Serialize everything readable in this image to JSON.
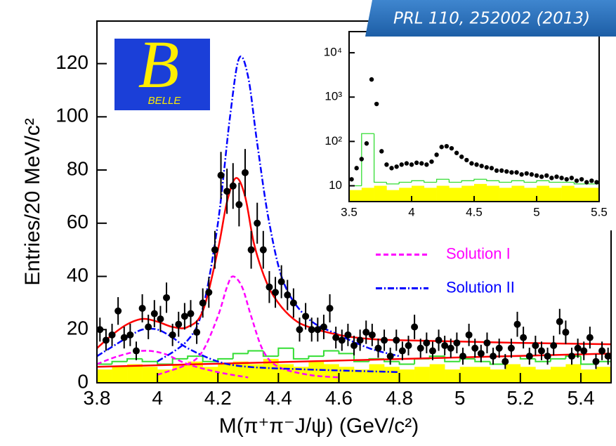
{
  "citation": "PRL 110, 252002 (2013)",
  "logo": {
    "mark": "B",
    "text": "BELLE"
  },
  "chart_data": [
    {
      "type": "histogram-fit",
      "x_label": "M(π⁺π⁻J/ψ) (GeV/c²)",
      "y_label": "Entries/20 MeV/c²",
      "xlim": [
        3.8,
        5.5
      ],
      "ylim": [
        0,
        136
      ],
      "xticks": [
        3.8,
        4,
        4.2,
        4.4,
        4.6,
        4.8,
        5,
        5.2,
        5.4
      ],
      "yticks": [
        0,
        20,
        40,
        60,
        80,
        100,
        120
      ],
      "legend": "center right",
      "histograms": [
        {
          "color": "#ffff00",
          "fill": true,
          "bins": [
            3.8,
            3.85,
            3.9,
            3.95,
            4.0,
            4.05,
            4.1,
            4.15,
            4.2,
            4.25,
            4.3,
            4.35,
            4.4,
            4.45,
            4.5,
            4.55,
            4.6,
            4.65,
            4.7,
            4.75,
            4.8,
            4.85,
            4.9,
            4.95,
            5.0,
            5.05,
            5.1,
            5.15,
            5.2,
            5.25,
            5.3,
            5.35,
            5.4,
            5.45,
            5.5
          ],
          "values": [
            5,
            6,
            7,
            6,
            5,
            7,
            8,
            6,
            7,
            8,
            7,
            9,
            7,
            6,
            8,
            7,
            6,
            5,
            7,
            6,
            5,
            6,
            7,
            5,
            6,
            6,
            5,
            7,
            6,
            5,
            6,
            7,
            5,
            6
          ]
        },
        {
          "color": "#33dd33",
          "fill": false,
          "bins": [
            3.8,
            3.85,
            3.9,
            3.95,
            4.0,
            4.05,
            4.1,
            4.15,
            4.2,
            4.25,
            4.3,
            4.35,
            4.4,
            4.45,
            4.5,
            4.55,
            4.6,
            4.65,
            4.7,
            4.75,
            4.8,
            4.85,
            4.9,
            4.95,
            5.0,
            5.05,
            5.1,
            5.15,
            5.2,
            5.25,
            5.3,
            5.35,
            5.4,
            5.45,
            5.5
          ],
          "values": [
            7,
            8,
            9,
            8,
            7,
            9,
            10,
            8,
            9,
            11,
            12,
            10,
            13,
            9,
            10,
            12,
            11,
            8,
            9,
            8,
            7,
            9,
            10,
            8,
            9,
            8,
            7,
            10,
            9,
            8,
            9,
            10,
            7,
            8
          ]
        }
      ],
      "curves": [
        {
          "color": "#ff0000",
          "dash": "solid",
          "x": [
            3.8,
            5.5
          ],
          "values": [
            6,
            11
          ]
        },
        {
          "color": "#ff00ff",
          "dash": "dashed",
          "x": [
            3.8,
            3.87,
            3.95,
            4.02,
            4.1,
            4.2,
            4.3
          ],
          "values": [
            7,
            10,
            12,
            11,
            7,
            4,
            2
          ]
        },
        {
          "name": "Solution I",
          "color": "#ff00ff",
          "dash": "dashed",
          "x": [
            4.0,
            4.1,
            4.15,
            4.2,
            4.23,
            4.25,
            4.28,
            4.31,
            4.35,
            4.4,
            4.5,
            4.6
          ],
          "values": [
            3,
            7,
            12,
            25,
            36,
            40,
            36,
            25,
            12,
            6,
            3,
            2
          ]
        },
        {
          "color": "#0000ff",
          "dash": "dashdot",
          "x": [
            3.8,
            3.9,
            3.95,
            4.0,
            4.05,
            4.1,
            4.2,
            4.3,
            4.5,
            4.8
          ],
          "values": [
            10,
            17,
            20,
            20,
            17,
            13,
            8,
            6,
            5,
            4
          ]
        },
        {
          "name": "Solution II",
          "color": "#0000ff",
          "dash": "dashdot",
          "x": [
            4.0,
            4.1,
            4.15,
            4.2,
            4.24,
            4.27,
            4.3,
            4.33,
            4.37,
            4.42,
            4.5,
            4.6,
            4.7,
            4.8
          ],
          "values": [
            8,
            16,
            28,
            60,
            100,
            122,
            115,
            90,
            60,
            37,
            24,
            18,
            13,
            10
          ]
        },
        {
          "color": "#ff0000",
          "dash": "solid",
          "x": [
            3.8,
            3.85,
            3.9,
            3.95,
            4.0,
            4.05,
            4.1,
            4.15,
            4.2,
            4.23,
            4.26,
            4.29,
            4.32,
            4.36,
            4.4,
            4.45,
            4.5,
            4.6,
            4.7,
            4.8,
            5.0,
            5.2,
            5.5
          ],
          "values": [
            13,
            18,
            22,
            24,
            23,
            21,
            21,
            27,
            50,
            68,
            77,
            70,
            52,
            38,
            30,
            24,
            21,
            18,
            16.5,
            16,
            15.5,
            15,
            14.5
          ]
        }
      ],
      "points": {
        "color": "#000000",
        "x": [
          3.81,
          3.83,
          3.85,
          3.87,
          3.89,
          3.91,
          3.93,
          3.95,
          3.97,
          3.99,
          4.01,
          4.03,
          4.05,
          4.07,
          4.09,
          4.11,
          4.13,
          4.15,
          4.17,
          4.19,
          4.21,
          4.23,
          4.25,
          4.27,
          4.29,
          4.31,
          4.33,
          4.35,
          4.37,
          4.39,
          4.41,
          4.43,
          4.45,
          4.47,
          4.49,
          4.51,
          4.53,
          4.55,
          4.57,
          4.59,
          4.61,
          4.63,
          4.65,
          4.67,
          4.69,
          4.71,
          4.73,
          4.75,
          4.77,
          4.79,
          4.81,
          4.83,
          4.85,
          4.87,
          4.89,
          4.91,
          4.93,
          4.95,
          4.97,
          4.99,
          5.01,
          5.03,
          5.05,
          5.07,
          5.09,
          5.11,
          5.13,
          5.15,
          5.17,
          5.19,
          5.21,
          5.23,
          5.25,
          5.27,
          5.29,
          5.31,
          5.33,
          5.35,
          5.37,
          5.39,
          5.41,
          5.43,
          5.45,
          5.47,
          5.49
        ],
        "values": [
          20,
          16,
          18,
          27,
          17,
          18,
          12,
          28,
          21,
          26,
          24,
          32,
          18,
          22,
          25,
          26,
          19,
          30,
          34,
          50,
          78,
          72,
          74,
          67,
          79,
          50,
          60,
          50,
          36,
          34,
          38,
          33,
          30,
          20,
          25,
          20,
          20,
          21,
          28,
          17,
          16,
          18,
          14,
          16,
          19,
          18,
          13,
          16,
          10,
          16,
          12,
          14,
          21,
          13,
          15,
          12,
          16,
          14,
          13,
          15,
          10,
          18,
          13,
          11,
          15,
          10,
          13,
          8,
          13,
          22,
          17,
          10,
          14,
          12,
          10,
          14,
          23,
          19,
          10,
          13,
          12,
          17,
          8,
          12,
          10
        ],
        "errors": [
          4.5,
          4,
          4.2,
          5.2,
          4.1,
          4.2,
          3.5,
          5.3,
          4.6,
          5.1,
          4.9,
          5.7,
          4.2,
          4.7,
          5,
          5.1,
          4.4,
          5.5,
          5.8,
          7.1,
          8.8,
          8.5,
          8.6,
          8.2,
          8.9,
          7.1,
          7.7,
          7.1,
          6,
          5.8,
          6.2,
          5.7,
          5.5,
          4.5,
          5,
          4.5,
          4.5,
          4.6,
          5.3,
          4.1,
          4,
          4.2,
          3.7,
          4,
          4.4,
          4.2,
          3.6,
          4,
          3.2,
          4,
          3.5,
          3.7,
          4.6,
          3.6,
          3.9,
          3.5,
          4,
          3.7,
          3.6,
          3.9,
          3.2,
          4.2,
          3.6,
          3.3,
          3.9,
          3.2,
          3.6,
          2.8,
          3.6,
          4.7,
          4.1,
          3.2,
          3.7,
          3.5,
          3.2,
          3.7,
          4.8,
          4.4,
          3.2,
          3.6,
          3.5,
          4.1,
          2.8,
          3.5,
          3.2
        ]
      }
    },
    {
      "type": "histogram-fit",
      "log_y": true,
      "xlim": [
        3.5,
        5.5
      ],
      "ylim": [
        4.4,
        30000
      ],
      "xticks": [
        3.5,
        4,
        4.5,
        5,
        5.5
      ],
      "yticks": [
        10,
        {
          "value": 100,
          "label": "10²"
        },
        {
          "value": 1000,
          "label": "10³"
        },
        {
          "value": 10000,
          "label": "10⁴"
        }
      ],
      "histograms": [
        {
          "color": "#ffff00",
          "fill": true,
          "bins": [
            3.5,
            3.6,
            3.7,
            3.8,
            3.9,
            4.0,
            4.1,
            4.2,
            4.3,
            4.4,
            4.5,
            4.6,
            4.7,
            4.8,
            4.9,
            5.0,
            5.1,
            5.2,
            5.3,
            5.4,
            5.5
          ],
          "values": [
            8,
            9,
            10,
            8,
            9,
            10,
            9,
            10,
            9,
            10,
            11,
            10,
            9,
            10,
            9,
            10,
            9,
            10,
            9,
            9
          ]
        },
        {
          "color": "#33dd33",
          "fill": false,
          "bins": [
            3.5,
            3.6,
            3.7,
            3.8,
            3.9,
            4.0,
            4.1,
            4.2,
            4.3,
            4.4,
            4.5,
            4.6,
            4.7,
            4.8,
            4.9,
            5.0,
            5.1,
            5.2,
            5.3,
            5.4,
            5.5
          ],
          "values": [
            10,
            150,
            12,
            11,
            12,
            13,
            12,
            14,
            12,
            13,
            14,
            13,
            12,
            13,
            12,
            13,
            12,
            12,
            11,
            11
          ]
        }
      ],
      "curves": [],
      "points": {
        "color": "#000000",
        "x": [
          3.52,
          3.56,
          3.6,
          3.64,
          3.68,
          3.72,
          3.76,
          3.8,
          3.84,
          3.88,
          3.92,
          3.96,
          4.0,
          4.04,
          4.08,
          4.12,
          4.16,
          4.2,
          4.24,
          4.28,
          4.32,
          4.36,
          4.4,
          4.44,
          4.48,
          4.52,
          4.56,
          4.6,
          4.64,
          4.68,
          4.72,
          4.76,
          4.8,
          4.84,
          4.88,
          4.92,
          4.96,
          5.0,
          5.04,
          5.08,
          5.12,
          5.16,
          5.2,
          5.24,
          5.28,
          5.32,
          5.36,
          5.4,
          5.44,
          5.48
        ],
        "values": [
          14,
          25,
          40,
          90,
          2500,
          700,
          60,
          30,
          25,
          27,
          30,
          32,
          30,
          33,
          32,
          30,
          35,
          50,
          75,
          78,
          70,
          55,
          45,
          38,
          32,
          30,
          28,
          26,
          25,
          22,
          22,
          21,
          20,
          20,
          18,
          19,
          18,
          17,
          16,
          17,
          15,
          16,
          15,
          14,
          15,
          13,
          14,
          12,
          13,
          12
        ]
      }
    }
  ]
}
